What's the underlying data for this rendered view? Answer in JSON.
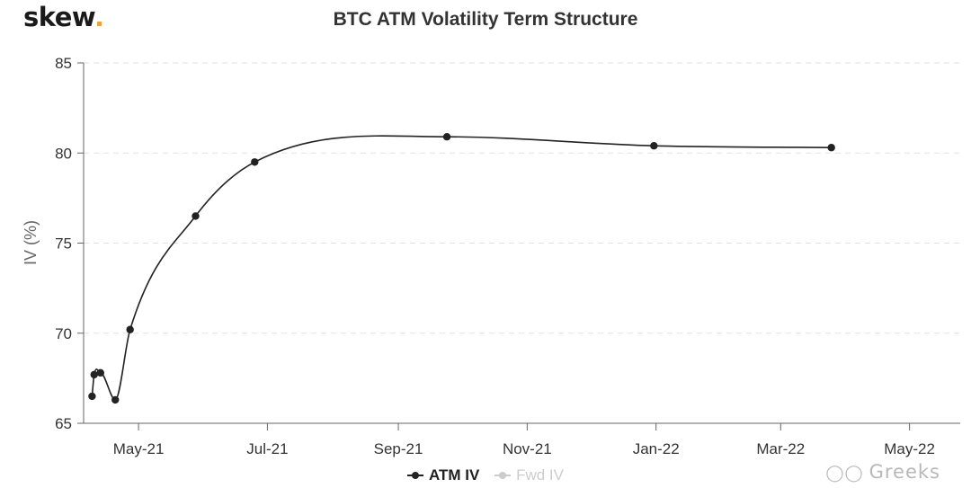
{
  "brand": {
    "logo_text": "skew",
    "accent_color": "#e8a33a"
  },
  "watermark": {
    "text": "Greeks"
  },
  "chart_data": {
    "type": "line",
    "title": "BTC ATM Volatility Term Structure",
    "xlabel": "",
    "ylabel": "IV (%)",
    "ylim": [
      65,
      85
    ],
    "yticks": [
      65,
      70,
      75,
      80,
      85
    ],
    "xlim": [
      "2021-04-05",
      "2022-05-25"
    ],
    "xticks": [
      {
        "date": "2021-05-01",
        "label": "May-21"
      },
      {
        "date": "2021-07-01",
        "label": "Jul-21"
      },
      {
        "date": "2021-09-01",
        "label": "Sep-21"
      },
      {
        "date": "2021-11-01",
        "label": "Nov-21"
      },
      {
        "date": "2022-01-01",
        "label": "Jan-22"
      },
      {
        "date": "2022-03-01",
        "label": "Mar-22"
      },
      {
        "date": "2022-05-01",
        "label": "May-22"
      }
    ],
    "grid": "horizontal dashed",
    "legend_position": "bottom",
    "series": [
      {
        "name": "ATM IV",
        "color": "#222222",
        "visible": true,
        "points": [
          {
            "x": "2021-04-09",
            "y": 66.5
          },
          {
            "x": "2021-04-10",
            "y": 67.7
          },
          {
            "x": "2021-04-13",
            "y": 67.8
          },
          {
            "x": "2021-04-20",
            "y": 66.3
          },
          {
            "x": "2021-04-27",
            "y": 70.2
          },
          {
            "x": "2021-05-28",
            "y": 76.5
          },
          {
            "x": "2021-06-25",
            "y": 79.5
          },
          {
            "x": "2021-09-24",
            "y": 80.9
          },
          {
            "x": "2021-12-31",
            "y": 80.4
          },
          {
            "x": "2022-03-25",
            "y": 80.3
          }
        ]
      },
      {
        "name": "Fwd IV",
        "color": "#cccccc",
        "visible": false,
        "points": []
      }
    ]
  }
}
